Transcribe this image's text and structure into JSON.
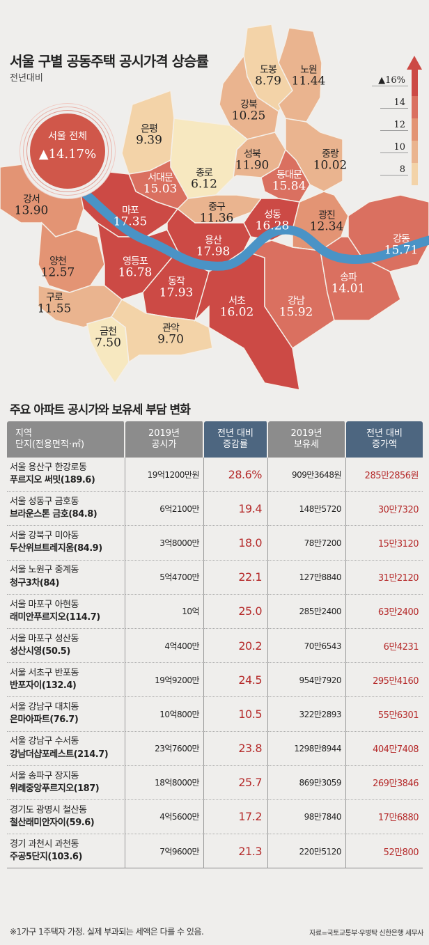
{
  "map": {
    "title": "서울 구별 공동주택 공시가격 상승률",
    "subtitle": "전년대비",
    "total_label": "서울 전체",
    "total_value": "▲14.17%",
    "legend": [
      "▲16%",
      "14",
      "12",
      "10",
      "8"
    ],
    "colors": {
      "low": "#f7e8c0",
      "c8": "#f3d3a8",
      "c10": "#eab48f",
      "c12": "#e39474",
      "c14": "#da7060",
      "c16": "#cc4a45",
      "river": "#4a93c6"
    }
  },
  "chart_data": {
    "type": "table",
    "map_values": [
      {
        "name": "도봉",
        "value": "8.79"
      },
      {
        "name": "노원",
        "value": "11.44"
      },
      {
        "name": "강북",
        "value": "10.25"
      },
      {
        "name": "은평",
        "value": "9.39"
      },
      {
        "name": "종로",
        "value": "6.12"
      },
      {
        "name": "성북",
        "value": "11.90"
      },
      {
        "name": "중랑",
        "value": "10.02"
      },
      {
        "name": "동대문",
        "value": "15.84"
      },
      {
        "name": "서대문",
        "value": "15.03"
      },
      {
        "name": "강서",
        "value": "13.90"
      },
      {
        "name": "마포",
        "value": "17.35"
      },
      {
        "name": "중구",
        "value": "11.36"
      },
      {
        "name": "성동",
        "value": "16.28"
      },
      {
        "name": "광진",
        "value": "12.34"
      },
      {
        "name": "강동",
        "value": "15.71"
      },
      {
        "name": "용산",
        "value": "17.98"
      },
      {
        "name": "양천",
        "value": "12.57"
      },
      {
        "name": "영등포",
        "value": "16.78"
      },
      {
        "name": "동작",
        "value": "17.93"
      },
      {
        "name": "구로",
        "value": "11.55"
      },
      {
        "name": "금천",
        "value": "7.50"
      },
      {
        "name": "관악",
        "value": "9.70"
      },
      {
        "name": "서초",
        "value": "16.02"
      },
      {
        "name": "강남",
        "value": "15.92"
      },
      {
        "name": "송파",
        "value": "14.01"
      }
    ]
  },
  "table": {
    "title": "주요 아파트 공시가와 보유세 부담 변화",
    "headers": [
      [
        "지역",
        "단지(전용면적·㎡)"
      ],
      [
        "2019년",
        "공시가"
      ],
      [
        "전년 대비",
        "증감률"
      ],
      [
        "2019년",
        "보유세"
      ],
      [
        "전년 대비",
        "증가액"
      ]
    ],
    "rows": [
      [
        "서울 용산구 한강로동",
        "푸르지오 써밋(189.6)",
        "19억1200만원",
        "28.6%",
        "909만3648원",
        "285만2856원"
      ],
      [
        "서울 성동구 금호동",
        "브라운스톤 금호(84.8)",
        "6억2100만",
        "19.4",
        "148만5720",
        "30만7320"
      ],
      [
        "서울 강북구 미아동",
        "두산위브트레지움(84.9)",
        "3억8000만",
        "18.0",
        "78만7200",
        "15만3120"
      ],
      [
        "서울 노원구 중계동",
        "청구3차(84)",
        "5억4700만",
        "22.1",
        "127만8840",
        "31만2120"
      ],
      [
        "서울 마포구 아현동",
        "래미안푸르지오(114.7)",
        "10억",
        "25.0",
        "285만2400",
        "63만2400"
      ],
      [
        "서울 마포구 성산동",
        "성산시영(50.5)",
        "4억400만",
        "20.2",
        "70만6543",
        "6만4231"
      ],
      [
        "서울 서초구 반포동",
        "반포자이(132.4)",
        "19억9200만",
        "24.5",
        "954만7920",
        "295만4160"
      ],
      [
        "서울 강남구 대치동",
        "은마아파트(76.7)",
        "10억800만",
        "10.5",
        "322만2893",
        "55만6301"
      ],
      [
        "서울 강남구 수서동",
        "강남더샵포레스트(214.7)",
        "23억7600만",
        "23.8",
        "1298만8944",
        "404만7408"
      ],
      [
        "서울 송파구 장지동",
        "위례중앙푸르지오(187)",
        "18억8000만",
        "25.7",
        "869만3059",
        "269만3846"
      ],
      [
        "경기도 광명시 철산동",
        "철산래미안자이(59.6)",
        "4억5600만",
        "17.2",
        "98만7840",
        "17만6880"
      ],
      [
        "경기 과천시 과천동",
        "주공5단지(103.6)",
        "7억9600만",
        "21.3",
        "220만5120",
        "52만800"
      ]
    ],
    "footnote": "※1가구 1주택자 가정. 실제 부과되는 세액은 다를 수 있음.",
    "source": "자료=국토교통부·우병탁 신한은행 세무사"
  }
}
